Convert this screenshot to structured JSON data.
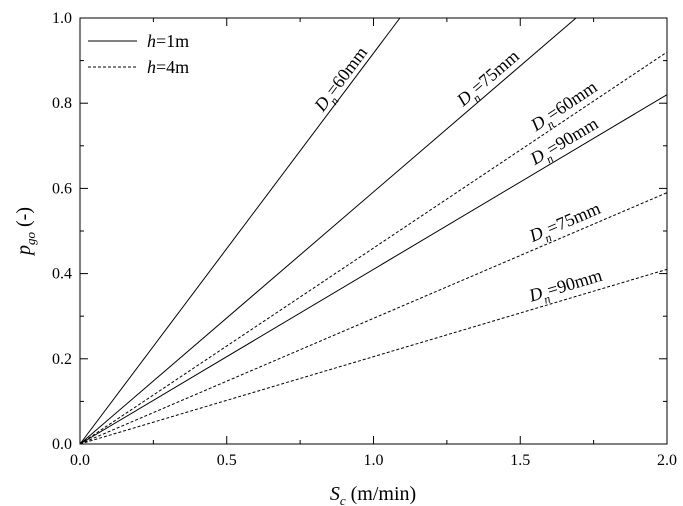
{
  "chart_data": {
    "type": "line",
    "xlabel_main": "S",
    "xlabel_sub": "c",
    "xlabel_rest": " (m/min)",
    "ylabel_main": "p",
    "ylabel_sub": "go",
    "ylabel_rest": " (-)",
    "xlim": [
      0,
      2.0
    ],
    "ylim": [
      0,
      1.0
    ],
    "x_ticks": [
      "0.0",
      "0.5",
      "1.0",
      "1.5",
      "2.0"
    ],
    "y_ticks": [
      "0.0",
      "0.2",
      "0.4",
      "0.6",
      "0.8",
      "1.0"
    ],
    "legend_position": "top-left",
    "legend": [
      {
        "italic": "h",
        "text": "=1m",
        "style": "solid"
      },
      {
        "italic": "h",
        "text": "=4m",
        "style": "dashed"
      }
    ],
    "series": [
      {
        "label_main": "D",
        "label_sub": "n",
        "label_rest": "=60mm",
        "style": "solid",
        "x": [
          0,
          1.09
        ],
        "y": [
          0,
          1.0
        ]
      },
      {
        "label_main": "D",
        "label_sub": "n",
        "label_rest": "=75mm",
        "style": "solid",
        "x": [
          0,
          1.69
        ],
        "y": [
          0,
          1.0
        ]
      },
      {
        "label_main": "D",
        "label_sub": "n",
        "label_rest": "=90mm",
        "style": "solid",
        "x": [
          0,
          2.0
        ],
        "y": [
          0,
          0.82
        ]
      },
      {
        "label_main": "D",
        "label_sub": "n",
        "label_rest": "=60mm",
        "style": "dashed",
        "x": [
          0,
          2.0
        ],
        "y": [
          0,
          0.92
        ]
      },
      {
        "label_main": "D",
        "label_sub": "n",
        "label_rest": "=75mm",
        "style": "dashed",
        "x": [
          0,
          2.0
        ],
        "y": [
          0,
          0.59
        ]
      },
      {
        "label_main": "D",
        "label_sub": "n",
        "label_rest": "=90mm",
        "style": "dashed",
        "x": [
          0,
          2.0
        ],
        "y": [
          0,
          0.41
        ]
      }
    ]
  }
}
